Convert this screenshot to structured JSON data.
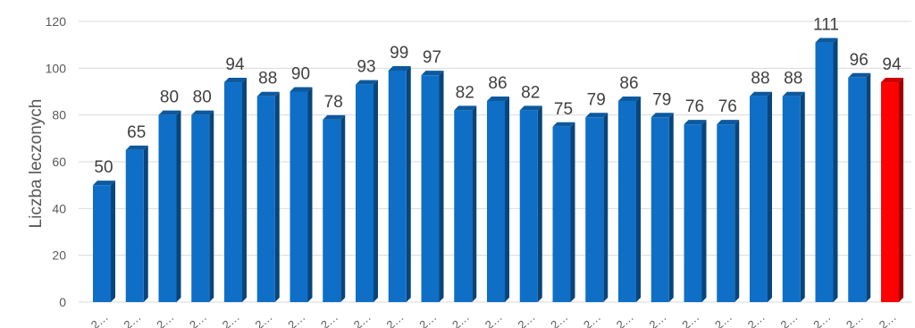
{
  "chart_data": {
    "type": "bar",
    "ylabel": "Liczba leczonych",
    "ylim": [
      0,
      120
    ],
    "yticks": [
      0,
      20,
      40,
      60,
      80,
      100,
      120
    ],
    "grid": true,
    "legend": "none",
    "categories": [
      "2…",
      "2…",
      "2…",
      "2…",
      "2…",
      "2…",
      "2…",
      "2…",
      "2…",
      "2…",
      "2…",
      "2…",
      "2…",
      "2…",
      "2…",
      "2…",
      "2…",
      "2…",
      "2…",
      "2…",
      "2…",
      "2…",
      "2…",
      "2…",
      "2…"
    ],
    "values": [
      50,
      65,
      80,
      80,
      94,
      88,
      90,
      78,
      93,
      99,
      97,
      82,
      86,
      82,
      75,
      79,
      86,
      79,
      76,
      76,
      88,
      88,
      111,
      96,
      94
    ],
    "colors": {
      "default": "#0F6FC6",
      "highlight": "#FF0000",
      "grid": "#D9D9D9"
    },
    "highlight_index": 24
  }
}
